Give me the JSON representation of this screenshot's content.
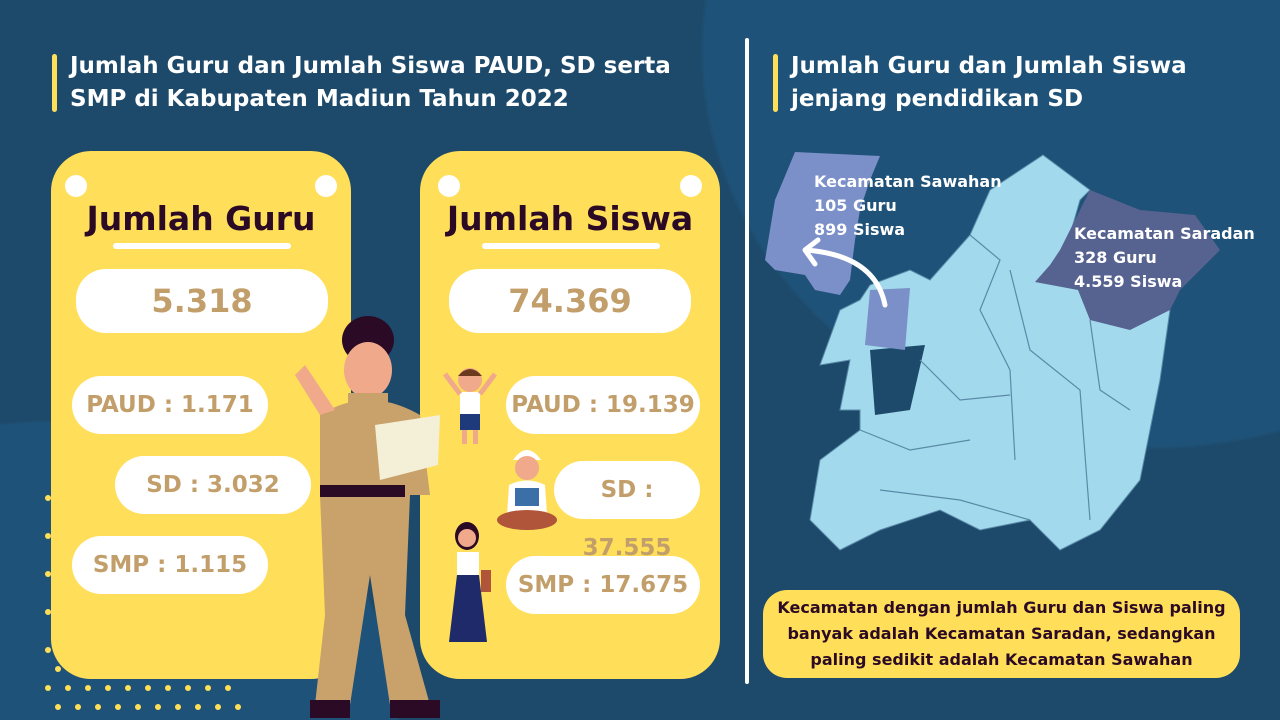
{
  "left": {
    "title_line1": "Jumlah Guru dan Jumlah Siswa PAUD, SD serta",
    "title_line2": "SMP di Kabupaten Madiun Tahun 2022",
    "guru": {
      "title": "Jumlah Guru",
      "total": "5.318",
      "paud": "PAUD : 1.171",
      "sd": "SD : 3.032",
      "smp": "SMP : 1.115"
    },
    "siswa": {
      "title": "Jumlah Siswa",
      "total": "74.369",
      "paud": "PAUD : 19.139",
      "sd": "SD : 37.555",
      "smp": "SMP : 17.675"
    }
  },
  "right": {
    "title_line1": "Jumlah Guru dan Jumlah Siswa",
    "title_line2": "jenjang pendidikan SD",
    "sawahan": {
      "name": "Kecamatan Sawahan",
      "guru": "105 Guru",
      "siswa": "899 Siswa"
    },
    "saradan": {
      "name": "Kecamatan Saradan",
      "guru": "328 Guru",
      "siswa": "4.559 Siswa"
    },
    "note_line1": "Kecamatan dengan jumlah Guru dan Siswa paling",
    "note_line2": "banyak adalah Kecamatan Saradan, sedangkan",
    "note_line3": "paling sedikit adalah Kecamatan Sawahan"
  },
  "colors": {
    "background": "#1d4a6b",
    "card": "#ffde59",
    "number": "#c29f6a",
    "map": "#a3d9ec",
    "sawahan": "#7b8fc9",
    "saradan": "#56628f"
  }
}
